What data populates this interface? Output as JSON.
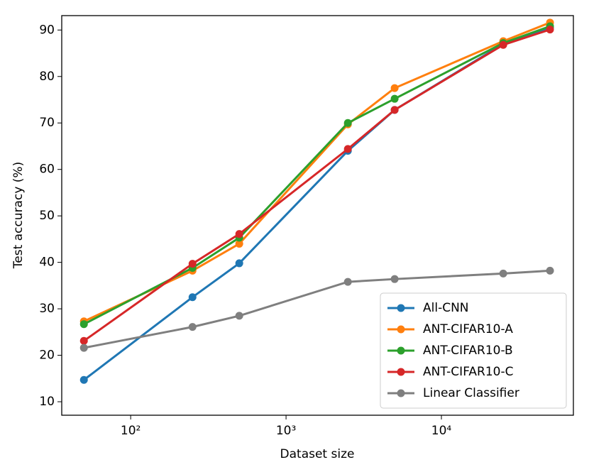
{
  "chart_data": {
    "type": "line",
    "x_label": "Dataset size",
    "y_label": "Test accuracy (%)",
    "x": [
      50,
      250,
      500,
      2500,
      5000,
      25000,
      50000
    ],
    "xscale": "log",
    "xlim": [
      36,
      70700
    ],
    "ylim": [
      7.1,
      93.1
    ],
    "xticks": [
      {
        "value": 100,
        "label": "10²"
      },
      {
        "value": 1000,
        "label": "10³"
      },
      {
        "value": 10000,
        "label": "10⁴"
      }
    ],
    "yticks": [
      10,
      20,
      30,
      40,
      50,
      60,
      70,
      80,
      90
    ],
    "legend": "lower right",
    "grid": false,
    "series": [
      {
        "name": "All-CNN",
        "color": "#1f77b4",
        "values": [
          14.7,
          32.5,
          39.8,
          64.0,
          72.8,
          87.0,
          90.5
        ]
      },
      {
        "name": "ANT-CIFAR10-A",
        "color": "#ff7f0e",
        "values": [
          27.3,
          38.2,
          44.0,
          69.7,
          77.5,
          87.6,
          91.6
        ]
      },
      {
        "name": "ANT-CIFAR10-B",
        "color": "#2ca02c",
        "values": [
          26.7,
          38.8,
          45.3,
          70.0,
          75.2,
          87.2,
          90.8
        ]
      },
      {
        "name": "ANT-CIFAR10-C",
        "color": "#d62728",
        "values": [
          23.1,
          39.7,
          46.1,
          64.4,
          72.8,
          86.8,
          90.1
        ]
      },
      {
        "name": "Linear Classifier",
        "color": "#7f7f7f",
        "values": [
          21.6,
          26.1,
          28.5,
          35.8,
          36.4,
          37.6,
          38.2
        ]
      }
    ]
  }
}
